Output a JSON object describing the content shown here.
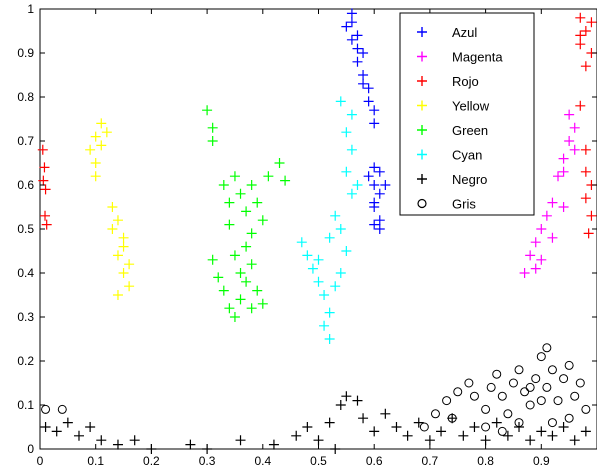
{
  "chart_data": {
    "type": "scatter",
    "title": "",
    "xlabel": "",
    "ylabel": "",
    "xlim": [
      0,
      1
    ],
    "ylim": [
      0,
      1
    ],
    "grid": false,
    "legend_placement": "top-right",
    "x_ticks": [
      "0",
      "0.1",
      "0.2",
      "0.3",
      "0.4",
      "0.5",
      "0.6",
      "0.7",
      "0.8",
      "0.9"
    ],
    "y_ticks": [
      "0",
      "0.1",
      "0.2",
      "0.3",
      "0.4",
      "0.5",
      "0.6",
      "0.7",
      "0.8",
      "0.9",
      "1"
    ],
    "series": [
      {
        "name": "Azul",
        "marker": "+",
        "color": "#0000ff",
        "points": [
          [
            0.56,
            0.99
          ],
          [
            0.55,
            0.96
          ],
          [
            0.56,
            0.93
          ],
          [
            0.57,
            0.94
          ],
          [
            0.58,
            0.9
          ],
          [
            0.57,
            0.88
          ],
          [
            0.58,
            0.85
          ],
          [
            0.59,
            0.82
          ],
          [
            0.59,
            0.79
          ],
          [
            0.6,
            0.77
          ],
          [
            0.58,
            0.83
          ],
          [
            0.56,
            0.97
          ],
          [
            0.57,
            0.91
          ],
          [
            0.6,
            0.74
          ],
          [
            0.6,
            0.64
          ],
          [
            0.59,
            0.62
          ],
          [
            0.6,
            0.6
          ],
          [
            0.61,
            0.58
          ],
          [
            0.6,
            0.55
          ],
          [
            0.61,
            0.52
          ],
          [
            0.61,
            0.5
          ],
          [
            0.6,
            0.56
          ],
          [
            0.62,
            0.6
          ],
          [
            0.61,
            0.63
          ],
          [
            0.6,
            0.51
          ]
        ]
      },
      {
        "name": "Magenta",
        "marker": "+",
        "color": "#ff00ff",
        "points": [
          [
            0.87,
            0.4
          ],
          [
            0.88,
            0.44
          ],
          [
            0.89,
            0.47
          ],
          [
            0.9,
            0.5
          ],
          [
            0.91,
            0.53
          ],
          [
            0.92,
            0.56
          ],
          [
            0.9,
            0.43
          ],
          [
            0.89,
            0.41
          ],
          [
            0.92,
            0.48
          ],
          [
            0.94,
            0.55
          ],
          [
            0.93,
            0.62
          ],
          [
            0.94,
            0.66
          ],
          [
            0.95,
            0.7
          ],
          [
            0.96,
            0.73
          ],
          [
            0.95,
            0.76
          ],
          [
            0.96,
            0.68
          ],
          [
            0.94,
            0.63
          ]
        ]
      },
      {
        "name": "Rojo",
        "marker": "+",
        "color": "#ff0000",
        "points": [
          [
            0.005,
            0.68
          ],
          [
            0.008,
            0.64
          ],
          [
            0.006,
            0.61
          ],
          [
            0.01,
            0.59
          ],
          [
            0.009,
            0.53
          ],
          [
            0.012,
            0.51
          ],
          [
            0.97,
            0.98
          ],
          [
            0.98,
            0.95
          ],
          [
            0.97,
            0.92
          ],
          [
            0.99,
            0.9
          ],
          [
            0.98,
            0.87
          ],
          [
            0.97,
            0.94
          ],
          [
            0.99,
            0.97
          ],
          [
            0.97,
            0.78
          ],
          [
            0.98,
            0.68
          ],
          [
            0.98,
            0.63
          ],
          [
            0.99,
            0.6
          ],
          [
            0.98,
            0.57
          ],
          [
            0.99,
            0.53
          ],
          [
            0.985,
            0.49
          ]
        ]
      },
      {
        "name": "Yellow",
        "marker": "+",
        "color": "#ffff00",
        "points": [
          [
            0.09,
            0.68
          ],
          [
            0.1,
            0.71
          ],
          [
            0.11,
            0.74
          ],
          [
            0.1,
            0.65
          ],
          [
            0.11,
            0.69
          ],
          [
            0.12,
            0.72
          ],
          [
            0.1,
            0.62
          ],
          [
            0.13,
            0.55
          ],
          [
            0.14,
            0.52
          ],
          [
            0.15,
            0.48
          ],
          [
            0.14,
            0.44
          ],
          [
            0.15,
            0.4
          ],
          [
            0.16,
            0.37
          ],
          [
            0.14,
            0.35
          ],
          [
            0.15,
            0.46
          ],
          [
            0.16,
            0.42
          ],
          [
            0.13,
            0.5
          ]
        ]
      },
      {
        "name": "Green",
        "marker": "+",
        "color": "#00ff00",
        "points": [
          [
            0.3,
            0.77
          ],
          [
            0.31,
            0.73
          ],
          [
            0.31,
            0.7
          ],
          [
            0.33,
            0.6
          ],
          [
            0.34,
            0.56
          ],
          [
            0.35,
            0.62
          ],
          [
            0.36,
            0.58
          ],
          [
            0.37,
            0.54
          ],
          [
            0.38,
            0.6
          ],
          [
            0.39,
            0.56
          ],
          [
            0.4,
            0.52
          ],
          [
            0.41,
            0.62
          ],
          [
            0.43,
            0.65
          ],
          [
            0.44,
            0.61
          ],
          [
            0.34,
            0.51
          ],
          [
            0.38,
            0.49
          ],
          [
            0.31,
            0.43
          ],
          [
            0.32,
            0.39
          ],
          [
            0.33,
            0.36
          ],
          [
            0.34,
            0.32
          ],
          [
            0.35,
            0.3
          ],
          [
            0.36,
            0.34
          ],
          [
            0.37,
            0.38
          ],
          [
            0.38,
            0.42
          ],
          [
            0.39,
            0.36
          ],
          [
            0.4,
            0.33
          ],
          [
            0.36,
            0.4
          ],
          [
            0.38,
            0.32
          ],
          [
            0.35,
            0.44
          ],
          [
            0.37,
            0.46
          ]
        ]
      },
      {
        "name": "Cyan",
        "marker": "+",
        "color": "#00ffff",
        "points": [
          [
            0.47,
            0.47
          ],
          [
            0.48,
            0.44
          ],
          [
            0.49,
            0.41
          ],
          [
            0.5,
            0.38
          ],
          [
            0.51,
            0.35
          ],
          [
            0.52,
            0.31
          ],
          [
            0.51,
            0.28
          ],
          [
            0.52,
            0.25
          ],
          [
            0.5,
            0.43
          ],
          [
            0.52,
            0.48
          ],
          [
            0.53,
            0.53
          ],
          [
            0.54,
            0.5
          ],
          [
            0.55,
            0.45
          ],
          [
            0.54,
            0.4
          ],
          [
            0.53,
            0.37
          ],
          [
            0.55,
            0.63
          ],
          [
            0.56,
            0.68
          ],
          [
            0.55,
            0.72
          ],
          [
            0.56,
            0.76
          ],
          [
            0.54,
            0.79
          ],
          [
            0.57,
            0.6
          ],
          [
            0.56,
            0.58
          ]
        ]
      },
      {
        "name": "Negro",
        "marker": "+",
        "color": "#000000",
        "points": [
          [
            0.01,
            0.05
          ],
          [
            0.03,
            0.04
          ],
          [
            0.05,
            0.06
          ],
          [
            0.07,
            0.03
          ],
          [
            0.09,
            0.05
          ],
          [
            0.11,
            0.02
          ],
          [
            0.14,
            0.01
          ],
          [
            0.17,
            0.02
          ],
          [
            0.2,
            0.0
          ],
          [
            0.27,
            0.01
          ],
          [
            0.3,
            0.0
          ],
          [
            0.36,
            0.02
          ],
          [
            0.42,
            0.01
          ],
          [
            0.46,
            0.03
          ],
          [
            0.48,
            0.05
          ],
          [
            0.5,
            0.02
          ],
          [
            0.52,
            0.06
          ],
          [
            0.54,
            0.1
          ],
          [
            0.55,
            0.12
          ],
          [
            0.57,
            0.11
          ],
          [
            0.58,
            0.07
          ],
          [
            0.6,
            0.04
          ],
          [
            0.62,
            0.08
          ],
          [
            0.64,
            0.05
          ],
          [
            0.66,
            0.03
          ],
          [
            0.68,
            0.06
          ],
          [
            0.7,
            0.02
          ],
          [
            0.72,
            0.04
          ],
          [
            0.74,
            0.07
          ],
          [
            0.76,
            0.03
          ],
          [
            0.78,
            0.05
          ],
          [
            0.8,
            0.02
          ],
          [
            0.82,
            0.06
          ],
          [
            0.84,
            0.03
          ],
          [
            0.86,
            0.05
          ],
          [
            0.88,
            0.02
          ],
          [
            0.9,
            0.04
          ],
          [
            0.92,
            0.03
          ],
          [
            0.94,
            0.05
          ],
          [
            0.96,
            0.02
          ],
          [
            0.98,
            0.04
          ],
          [
            0.53,
            0.0
          ]
        ]
      },
      {
        "name": "Gris",
        "marker": "o",
        "color": "#000000",
        "points": [
          [
            0.01,
            0.09
          ],
          [
            0.04,
            0.09
          ],
          [
            0.69,
            0.05
          ],
          [
            0.71,
            0.08
          ],
          [
            0.73,
            0.11
          ],
          [
            0.75,
            0.13
          ],
          [
            0.77,
            0.15
          ],
          [
            0.78,
            0.12
          ],
          [
            0.8,
            0.09
          ],
          [
            0.81,
            0.14
          ],
          [
            0.82,
            0.17
          ],
          [
            0.83,
            0.12
          ],
          [
            0.84,
            0.08
          ],
          [
            0.85,
            0.15
          ],
          [
            0.86,
            0.18
          ],
          [
            0.87,
            0.13
          ],
          [
            0.88,
            0.1
          ],
          [
            0.89,
            0.16
          ],
          [
            0.9,
            0.21
          ],
          [
            0.91,
            0.23
          ],
          [
            0.91,
            0.14
          ],
          [
            0.92,
            0.18
          ],
          [
            0.93,
            0.11
          ],
          [
            0.94,
            0.16
          ],
          [
            0.95,
            0.19
          ],
          [
            0.96,
            0.12
          ],
          [
            0.97,
            0.15
          ],
          [
            0.98,
            0.09
          ],
          [
            0.8,
            0.05
          ],
          [
            0.86,
            0.06
          ],
          [
            0.92,
            0.06
          ],
          [
            0.74,
            0.07
          ],
          [
            0.83,
            0.04
          ],
          [
            0.95,
            0.07
          ],
          [
            0.88,
            0.14
          ],
          [
            0.9,
            0.11
          ]
        ]
      }
    ]
  }
}
